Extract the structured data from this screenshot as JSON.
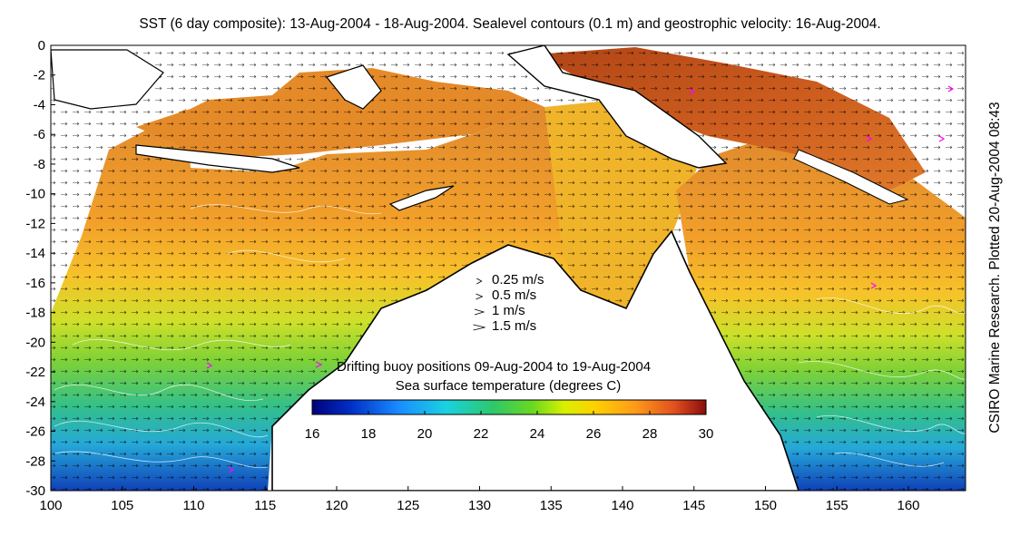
{
  "title": "SST (6 day composite): 13-Aug-2004 - 18-Aug-2004. Sealevel contours (0.1 m) and geostrophic velocity: 16-Aug-2004.",
  "credit": "CSIRO Marine Research. Plotted 20-Aug-2004 08:43",
  "axes": {
    "x_ticks": [
      100,
      105,
      110,
      115,
      120,
      125,
      130,
      135,
      140,
      145,
      150,
      155,
      160
    ],
    "y_ticks": [
      0,
      -2,
      -4,
      -6,
      -8,
      -10,
      -12,
      -14,
      -16,
      -18,
      -20,
      -22,
      -24,
      -26,
      -28,
      -30
    ],
    "x_range": [
      100,
      164
    ],
    "y_range": [
      -30,
      0
    ]
  },
  "velocity_legend": [
    {
      "label": "0.25 m/s",
      "speed": 0.25
    },
    {
      "label": "0.5 m/s",
      "speed": 0.5
    },
    {
      "label": "1 m/s",
      "speed": 1
    },
    {
      "label": "1.5 m/s",
      "speed": 1.5
    }
  ],
  "buoy_legend": {
    "label": "Drifting buoy positions 09-Aug-2004 to 19-Aug-2004",
    "marker_color": "#ff00ff"
  },
  "colorbar": {
    "title": "Sea surface temperature (degrees C)",
    "ticks": [
      16,
      18,
      20,
      22,
      24,
      26,
      28,
      30
    ],
    "range": [
      16,
      30
    ]
  },
  "colors": {
    "land": "#ffffff",
    "coast": "#000000",
    "contour": "#ffffff",
    "buoy": "#ff00ff"
  }
}
